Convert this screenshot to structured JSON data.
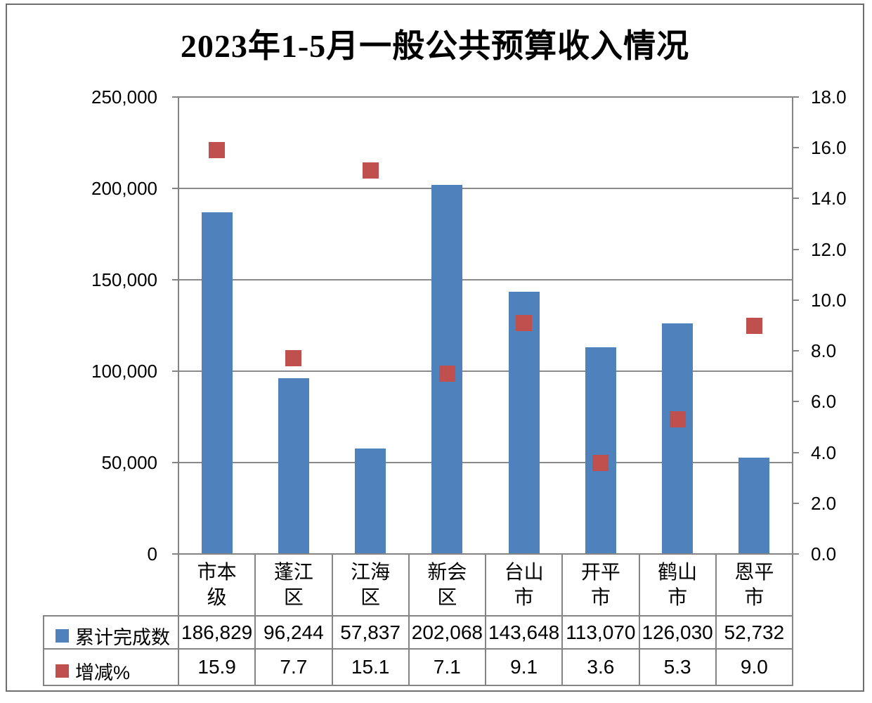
{
  "chart_data": {
    "type": "bar",
    "title": "2023年1-5月一般公共预算收入情况",
    "categories": [
      "市本级",
      "蓬江区",
      "江海区",
      "新会区",
      "台山市",
      "开平市",
      "鹤山市",
      "恩平市"
    ],
    "categories_wrapped": [
      [
        "市本",
        "级"
      ],
      [
        "蓬江",
        "区"
      ],
      [
        "江海",
        "区"
      ],
      [
        "新会",
        "区"
      ],
      [
        "台山",
        "市"
      ],
      [
        "开平",
        "市"
      ],
      [
        "鹤山",
        "市"
      ],
      [
        "恩平",
        "市"
      ]
    ],
    "series": [
      {
        "name": "累计完成数",
        "type": "bar",
        "axis": "left",
        "color": "#4F81BD",
        "values": [
          186829,
          96244,
          57837,
          202068,
          143648,
          113070,
          126030,
          52732
        ],
        "labels": [
          "186,829",
          "96,244",
          "57,837",
          "202,068",
          "143,648",
          "113,070",
          "126,030",
          "52,732"
        ]
      },
      {
        "name": "增减%",
        "type": "scatter",
        "marker": "square",
        "axis": "right",
        "color": "#C0504D",
        "values": [
          15.9,
          7.7,
          15.1,
          7.1,
          9.1,
          3.6,
          5.3,
          9.0
        ],
        "labels": [
          "15.9",
          "7.7",
          "15.1",
          "7.1",
          "9.1",
          "3.6",
          "5.3",
          "9.0"
        ]
      }
    ],
    "left_axis": {
      "min": 0,
      "max": 250000,
      "step": 50000,
      "tick_labels": [
        "0",
        "50,000",
        "100,000",
        "150,000",
        "200,000",
        "250,000"
      ]
    },
    "right_axis": {
      "min": 0,
      "max": 18,
      "step": 2,
      "tick_labels": [
        "0.0",
        "2.0",
        "4.0",
        "6.0",
        "8.0",
        "10.0",
        "12.0",
        "14.0",
        "16.0",
        "18.0"
      ]
    },
    "grid": true,
    "legend_position": "bottom-table-left-column",
    "colors": {
      "bar": "#4F81BD",
      "marker": "#C0504D",
      "line": "#848484",
      "text": "#000000",
      "background": "#FFFFFF"
    }
  }
}
